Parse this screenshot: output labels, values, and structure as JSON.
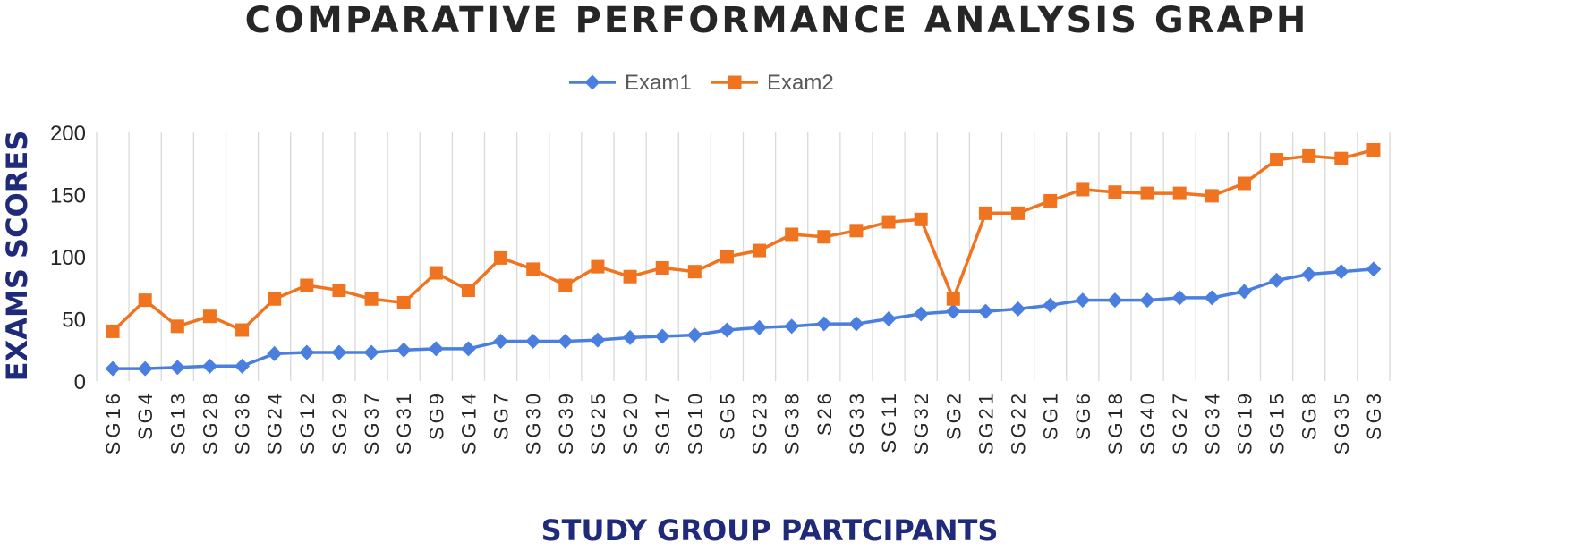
{
  "chart_data": {
    "type": "line",
    "title": "COMPARATIVE PERFORMANCE ANALYSIS GRAPH",
    "xlabel": "STUDY GROUP PARTCIPANTS",
    "ylabel": "EXAMS SCORES",
    "ylim": [
      0,
      200
    ],
    "yticks": [
      0,
      50,
      100,
      150,
      200
    ],
    "grid": "vertical",
    "legend_position": "top-center",
    "categories": [
      "SG16",
      "SG4",
      "SG13",
      "SG28",
      "SG36",
      "SG24",
      "SG12",
      "SG29",
      "SG37",
      "SG31",
      "SG9",
      "SG14",
      "SG7",
      "SG30",
      "SG39",
      "SG25",
      "SG20",
      "SG17",
      "SG10",
      "SG5",
      "SG23",
      "SG38",
      "S26",
      "SG33",
      "SG11",
      "SG32",
      "SG2",
      "SG21",
      "SG22",
      "SG1",
      "SG6",
      "SG18",
      "SG40",
      "SG27",
      "SG34",
      "SG19",
      "SG15",
      "SG8",
      "SG35",
      "SG3"
    ],
    "series": [
      {
        "name": "Exam1",
        "color": "#4a7fe0",
        "marker": "diamond",
        "values": [
          10,
          10,
          11,
          12,
          12,
          22,
          23,
          23,
          23,
          25,
          26,
          26,
          32,
          32,
          32,
          33,
          35,
          36,
          37,
          41,
          43,
          44,
          46,
          46,
          50,
          54,
          56,
          56,
          58,
          61,
          65,
          65,
          65,
          67,
          67,
          72,
          81,
          86,
          88,
          90
        ]
      },
      {
        "name": "Exam2",
        "color": "#f0731f",
        "marker": "square",
        "values": [
          40,
          65,
          44,
          52,
          41,
          66,
          77,
          73,
          66,
          63,
          87,
          73,
          99,
          90,
          77,
          92,
          84,
          91,
          88,
          100,
          105,
          118,
          116,
          121,
          128,
          130,
          66,
          135,
          135,
          145,
          154,
          152,
          151,
          151,
          149,
          159,
          178,
          181,
          179,
          186
        ]
      }
    ]
  }
}
